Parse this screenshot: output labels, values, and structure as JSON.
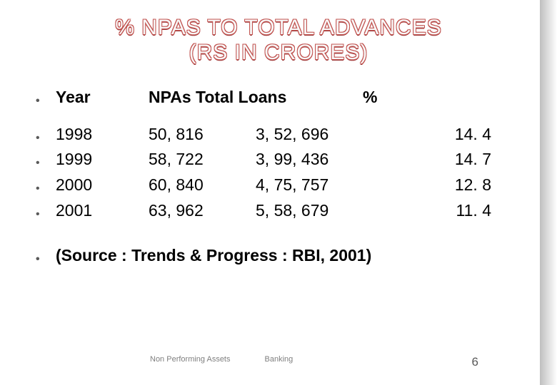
{
  "title": {
    "line1": "% NPAS TO TOTAL ADVANCES",
    "line2": "(RS IN CRORES)"
  },
  "headers": {
    "year": "Year",
    "npas_loans": "NPAs Total Loans",
    "pct": "%"
  },
  "rows": [
    {
      "year": "1998",
      "npas": "50, 816",
      "loans": "3, 52, 696",
      "pct": "14. 4"
    },
    {
      "year": "1999",
      "npas": "58, 722",
      "loans": "3, 99, 436",
      "pct": "14. 7"
    },
    {
      "year": "2000",
      "npas": "60, 840",
      "loans": "4, 75, 757",
      "pct": "12. 8"
    },
    {
      "year": "2001",
      "npas": "63, 962",
      "loans": "5, 58, 679",
      "pct": "11. 4"
    }
  ],
  "source": "(Source : Trends & Progress : RBI, 2001)",
  "footer": {
    "left": "Non Performing Assets",
    "mid": "Banking",
    "page": "6"
  },
  "bullet_glyph": "•"
}
